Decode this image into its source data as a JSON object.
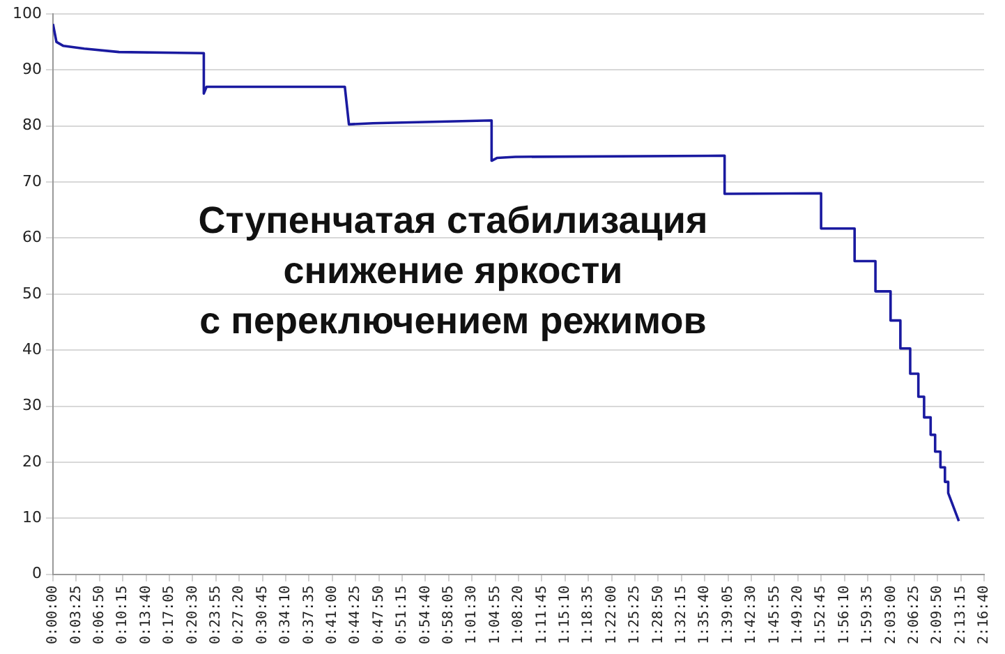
{
  "chart_data": {
    "type": "line",
    "title": "Ступенчатая стабилизация\nснижение яркости\nс переключением режимов",
    "x": [
      0,
      0.0085,
      0.0255,
      0.0765,
      0.1615,
      0.369,
      0.369,
      0.3757,
      0.714,
      0.724,
      0.783,
      1.073,
      1.073,
      1.086,
      1.131,
      1.643,
      1.643,
      1.879,
      1.879,
      1.961,
      1.961,
      2.012,
      2.012,
      2.049,
      2.049,
      2.073,
      2.073,
      2.097,
      2.097,
      2.117,
      2.117,
      2.131,
      2.131,
      2.147,
      2.147,
      2.158,
      2.158,
      2.171,
      2.171,
      2.182,
      2.182,
      2.19,
      2.19,
      2.216
    ],
    "values": [
      98.2,
      95,
      94.3,
      93.8,
      93.2,
      93.0,
      85.8,
      87.0,
      87.0,
      80.3,
      80.5,
      81.0,
      73.8,
      74.3,
      74.5,
      74.7,
      67.9,
      68.0,
      61.7,
      61.7,
      55.9,
      55.9,
      50.5,
      50.5,
      45.3,
      45.3,
      40.3,
      40.3,
      35.8,
      35.8,
      31.7,
      31.7,
      28.0,
      28.0,
      24.9,
      24.9,
      21.9,
      21.9,
      19.1,
      19.1,
      16.5,
      16.5,
      14.5,
      9.5
    ],
    "color": "#1a1aa0",
    "marker": "none",
    "grid": "y",
    "ylim": [
      0,
      100
    ],
    "yticks": [
      0,
      10,
      20,
      30,
      40,
      50,
      60,
      70,
      80,
      90,
      100
    ],
    "xlim": [
      0,
      2.27778
    ],
    "xticks": [
      {
        "value": 0,
        "label": "0:00:00"
      },
      {
        "value": 0.05694,
        "label": "0:03:25"
      },
      {
        "value": 0.11389,
        "label": "0:06:50"
      },
      {
        "value": 0.17083,
        "label": "0:10:15"
      },
      {
        "value": 0.22778,
        "label": "0:13:40"
      },
      {
        "value": 0.28472,
        "label": "0:17:05"
      },
      {
        "value": 0.34167,
        "label": "0:20:30"
      },
      {
        "value": 0.39861,
        "label": "0:23:55"
      },
      {
        "value": 0.45556,
        "label": "0:27:20"
      },
      {
        "value": 0.5125,
        "label": "0:30:45"
      },
      {
        "value": 0.56944,
        "label": "0:34:10"
      },
      {
        "value": 0.62639,
        "label": "0:37:35"
      },
      {
        "value": 0.68333,
        "label": "0:41:00"
      },
      {
        "value": 0.74028,
        "label": "0:44:25"
      },
      {
        "value": 0.79722,
        "label": "0:47:50"
      },
      {
        "value": 0.85417,
        "label": "0:51:15"
      },
      {
        "value": 0.91111,
        "label": "0:54:40"
      },
      {
        "value": 0.96806,
        "label": "0:58:05"
      },
      {
        "value": 1.025,
        "label": "1:01:30"
      },
      {
        "value": 1.08194,
        "label": "1:04:55"
      },
      {
        "value": 1.13889,
        "label": "1:08:20"
      },
      {
        "value": 1.19583,
        "label": "1:11:45"
      },
      {
        "value": 1.25278,
        "label": "1:15:10"
      },
      {
        "value": 1.30972,
        "label": "1:18:35"
      },
      {
        "value": 1.36667,
        "label": "1:22:00"
      },
      {
        "value": 1.42361,
        "label": "1:25:25"
      },
      {
        "value": 1.48056,
        "label": "1:28:50"
      },
      {
        "value": 1.5375,
        "label": "1:32:15"
      },
      {
        "value": 1.59444,
        "label": "1:35:40"
      },
      {
        "value": 1.65139,
        "label": "1:39:05"
      },
      {
        "value": 1.70833,
        "label": "1:42:30"
      },
      {
        "value": 1.76528,
        "label": "1:45:55"
      },
      {
        "value": 1.82222,
        "label": "1:49:20"
      },
      {
        "value": 1.87917,
        "label": "1:52:45"
      },
      {
        "value": 1.93611,
        "label": "1:56:10"
      },
      {
        "value": 1.99306,
        "label": "1:59:35"
      },
      {
        "value": 2.05,
        "label": "2:03:00"
      },
      {
        "value": 2.10694,
        "label": "2:06:25"
      },
      {
        "value": 2.16389,
        "label": "2:09:50"
      },
      {
        "value": 2.22083,
        "label": "2:13:15"
      },
      {
        "value": 2.27778,
        "label": "2:16:40"
      }
    ]
  }
}
